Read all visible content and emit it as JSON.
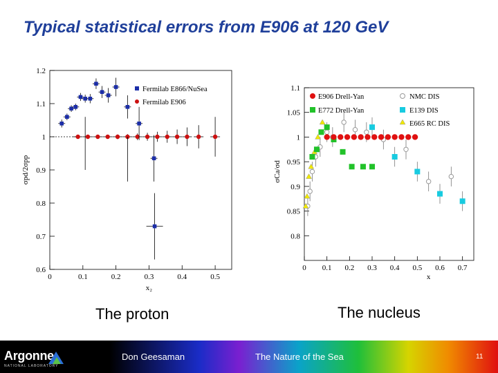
{
  "slide": {
    "title": "Typical statistical errors from E906 at 120 GeV",
    "caption_left": "The proton",
    "caption_right": "The nucleus"
  },
  "footer": {
    "logo": "Argonne",
    "logo_sub": "NATIONAL LABORATORY",
    "author": "Don Geesaman",
    "talk": "The Nature of the Sea",
    "page": "11"
  },
  "chart_data": [
    {
      "type": "scatter",
      "xlabel": "x₂",
      "ylabel": "σpd/2σpp",
      "xlim": [
        0,
        0.55
      ],
      "ylim": [
        0.6,
        1.2
      ],
      "xticks": [
        0,
        0.1,
        0.2,
        0.3,
        0.4,
        0.5
      ],
      "yticks": [
        0.6,
        0.7,
        0.8,
        0.9,
        1,
        1.1,
        1.2
      ],
      "legend_position": "top-right",
      "colors": {
        "blue": "#1c2ea8",
        "red": "#cc1111"
      },
      "series": [
        {
          "name": "Fermilab E866/NuSea",
          "marker": "square",
          "x": [
            0.036,
            0.052,
            0.065,
            0.078,
            0.093,
            0.107,
            0.122,
            0.14,
            0.158,
            0.177,
            0.2,
            0.235,
            0.27,
            0.315
          ],
          "y": [
            1.04,
            1.06,
            1.085,
            1.09,
            1.12,
            1.115,
            1.115,
            1.16,
            1.135,
            1.125,
            1.15,
            1.09,
            1.04,
            0.935
          ],
          "err": [
            0.012,
            0.01,
            0.01,
            0.01,
            0.012,
            0.012,
            0.014,
            0.016,
            0.018,
            0.022,
            0.028,
            0.035,
            0.05,
            0.07
          ]
        },
        {
          "name": "Fermilab E906",
          "marker": "circle",
          "x": [
            0.085,
            0.115,
            0.145,
            0.175,
            0.205,
            0.235,
            0.265,
            0.295,
            0.325,
            0.355,
            0.385,
            0.415,
            0.45,
            0.5
          ],
          "y": [
            1,
            1,
            1,
            1,
            1,
            1,
            1,
            1,
            1,
            1,
            1,
            1,
            1,
            1
          ],
          "err": [
            0.005,
            0.005,
            0.005,
            0.006,
            0.007,
            0.008,
            0.01,
            0.012,
            0.015,
            0.018,
            0.022,
            0.028,
            0.035,
            0.06
          ]
        }
      ],
      "extra_point": {
        "x": 0.317,
        "y": 0.73,
        "err": 0.1
      }
    },
    {
      "type": "scatter",
      "xlabel": "x",
      "ylabel": "σCa/σd",
      "xlim": [
        0,
        0.75
      ],
      "ylim": [
        0.75,
        1.1
      ],
      "xticks": [
        0,
        0.1,
        0.2,
        0.3,
        0.4,
        0.5,
        0.6,
        0.7
      ],
      "yticks": [
        0.8,
        0.85,
        0.9,
        0.95,
        1,
        1.05,
        1.1
      ],
      "legend_position": "top",
      "colors": {
        "red": "#e01010",
        "green": "#22c22a",
        "cyan": "#18cbe0",
        "yellow": "#f0e800",
        "open": "#999999"
      },
      "series": [
        {
          "name": "E906 Drell-Yan",
          "marker": "circle-red",
          "x": [
            0.1,
            0.13,
            0.16,
            0.19,
            0.22,
            0.25,
            0.28,
            0.31,
            0.34,
            0.37,
            0.4,
            0.43,
            0.46,
            0.49
          ],
          "y": [
            1,
            1,
            1,
            1,
            1,
            1,
            1,
            1,
            1,
            1,
            1,
            1,
            1,
            1
          ]
        },
        {
          "name": "E772 Drell-Yan",
          "marker": "square-green",
          "x": [
            0.035,
            0.055,
            0.075,
            0.1,
            0.13,
            0.17,
            0.21,
            0.26,
            0.3
          ],
          "y": [
            0.96,
            0.975,
            1.01,
            1.02,
            0.995,
            0.97,
            0.94,
            0.94,
            0.94
          ]
        },
        {
          "name": "NMC DIS",
          "marker": "circle-open",
          "x": [
            0.015,
            0.025,
            0.035,
            0.05,
            0.07,
            0.1,
            0.125,
            0.175,
            0.225,
            0.275,
            0.35,
            0.45,
            0.55,
            0.65
          ],
          "y": [
            0.86,
            0.89,
            0.93,
            0.96,
            0.98,
            1.01,
            1.0,
            1.03,
            1.015,
            1.01,
            0.995,
            0.975,
            0.91,
            0.92
          ]
        },
        {
          "name": "E139 DIS",
          "marker": "square-cyan",
          "x": [
            0.3,
            0.4,
            0.5,
            0.6,
            0.7
          ],
          "y": [
            1.02,
            0.96,
            0.93,
            0.885,
            0.87
          ]
        },
        {
          "name": "E665 RC DIS",
          "marker": "triangle-yellow",
          "x": [
            0.006,
            0.012,
            0.02,
            0.03,
            0.045,
            0.06,
            0.08
          ],
          "y": [
            0.86,
            0.88,
            0.92,
            0.94,
            0.97,
            1.0,
            1.03
          ]
        }
      ]
    }
  ]
}
